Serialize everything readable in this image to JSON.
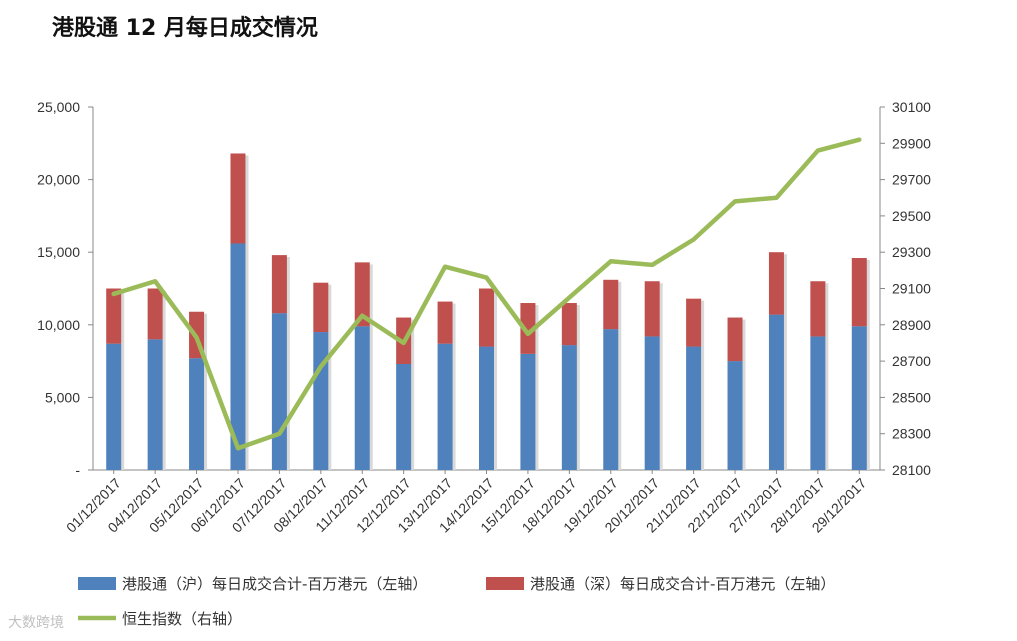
{
  "chart_data": {
    "type": "bar",
    "title": "港股通 12 月每日成交情况",
    "categories": [
      "01/12/2017",
      "04/12/2017",
      "05/12/2017",
      "06/12/2017",
      "07/12/2017",
      "08/12/2017",
      "11/12/2017",
      "12/12/2017",
      "13/12/2017",
      "14/12/2017",
      "15/12/2017",
      "18/12/2017",
      "19/12/2017",
      "20/12/2017",
      "21/12/2017",
      "22/12/2017",
      "27/12/2017",
      "28/12/2017",
      "29/12/2017"
    ],
    "series": [
      {
        "name": "港股通（沪）每日成交合计-百万港元（左轴）",
        "type": "bar",
        "axis": "left",
        "color": "#4f81bd",
        "values": [
          8700,
          9000,
          7700,
          15600,
          10800,
          9500,
          9900,
          7300,
          8700,
          8500,
          8000,
          8600,
          9700,
          9200,
          8500,
          7500,
          10700,
          9200,
          9900
        ]
      },
      {
        "name": "港股通（深）每日成交合计-百万港元（左轴）",
        "type": "bar",
        "axis": "left",
        "color": "#c0504d",
        "values": [
          3800,
          3500,
          3200,
          6200,
          4000,
          3400,
          4400,
          3200,
          2900,
          4000,
          3500,
          2900,
          3400,
          3800,
          3300,
          3000,
          4300,
          3800,
          4700
        ]
      },
      {
        "name": "恒生指数（右轴）",
        "type": "line",
        "axis": "right",
        "color": "#9bbb59",
        "values": [
          29070,
          29140,
          28830,
          28220,
          28300,
          28670,
          28950,
          28800,
          29220,
          29160,
          28850,
          29050,
          29250,
          29230,
          29370,
          29580,
          29600,
          29860,
          29920
        ]
      }
    ],
    "left_axis": {
      "ylim": [
        0,
        25000
      ],
      "ticks": [
        "-",
        "5,000",
        "10,000",
        "15,000",
        "20,000",
        "25,000"
      ],
      "tick_values": [
        0,
        5000,
        10000,
        15000,
        20000,
        25000
      ]
    },
    "right_axis": {
      "ylim": [
        28100,
        30100
      ],
      "ticks": [
        "28100",
        "28300",
        "28500",
        "28700",
        "28900",
        "29100",
        "29300",
        "29500",
        "29700",
        "29900",
        "30100"
      ]
    },
    "legend_position": "bottom"
  },
  "watermark": "大数跨境"
}
